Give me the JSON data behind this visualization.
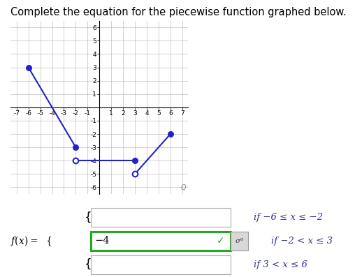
{
  "title": "Complete the equation for the piecewise function graphed below.",
  "title_fontsize": 10.5,
  "graph": {
    "xlim": [
      -7.5,
      7.5
    ],
    "ylim": [
      -6.5,
      6.5
    ],
    "xticks": [
      -7,
      -6,
      -5,
      -4,
      -3,
      -2,
      -1,
      0,
      1,
      2,
      3,
      4,
      5,
      6,
      7
    ],
    "yticks": [
      -6,
      -5,
      -4,
      -3,
      -2,
      -1,
      0,
      1,
      2,
      3,
      4,
      5,
      6
    ],
    "segment1": {
      "x": [
        -6,
        -2
      ],
      "y": [
        3,
        -3
      ]
    },
    "segment2": {
      "x": [
        -2,
        3
      ],
      "y": [
        -4,
        -4
      ]
    },
    "segment3": {
      "x": [
        3,
        6
      ],
      "y": [
        -5,
        -2
      ]
    },
    "line_color": "#2222cc",
    "dot_color": "#2222cc",
    "dot_size": 5.5,
    "open_circle_size": 5.5
  },
  "piecewise": {
    "rows": [
      {
        "input_text": "",
        "condition": "if −6 ≤ x ≤ −2",
        "green_border": false
      },
      {
        "input_text": "−4",
        "condition": "if −2 < x ≤ 3",
        "green_border": true
      },
      {
        "input_text": "",
        "condition": "if 3 < x ≤ 6",
        "green_border": false
      }
    ],
    "checkmark_color": "#22aa22",
    "sigma_bg": "#d8d8d8"
  },
  "background_color": "#ffffff"
}
